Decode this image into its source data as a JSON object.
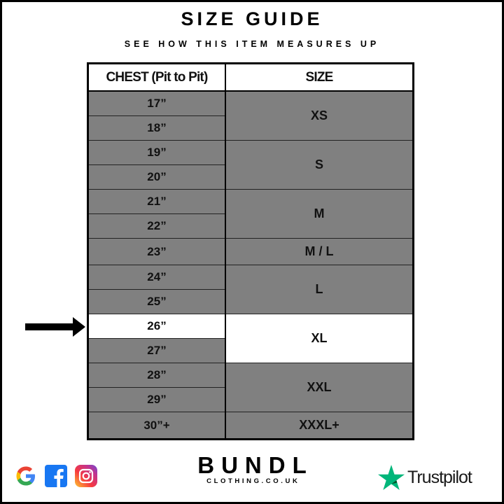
{
  "header": {
    "title": "SIZE GUIDE",
    "subtitle": "SEE HOW THIS ITEM MEASURES UP"
  },
  "table": {
    "columns": [
      "CHEST (Pit to Pit)",
      "SIZE"
    ],
    "groups": [
      {
        "size": "XS",
        "chest": [
          "17”",
          "18”"
        ]
      },
      {
        "size": "S",
        "chest": [
          "19”",
          "20”"
        ]
      },
      {
        "size": "M",
        "chest": [
          "21”",
          "22”"
        ]
      },
      {
        "size": "M / L",
        "chest": [
          "23”"
        ]
      },
      {
        "size": "L",
        "chest": [
          "24”",
          "25”"
        ]
      },
      {
        "size": "XL",
        "chest": [
          "26”",
          "27”"
        ]
      },
      {
        "size": "XXL",
        "chest": [
          "28”",
          "29”"
        ]
      },
      {
        "size": "XXXL+",
        "chest": [
          "30”+"
        ]
      }
    ],
    "highlighted_chest": "26”",
    "highlighted_size": "XL",
    "colors": {
      "row_bg": "#808080",
      "highlight_bg": "#ffffff"
    }
  },
  "footer": {
    "social_icons": [
      "google-icon",
      "facebook-icon",
      "instagram-icon"
    ],
    "brand": {
      "name": "BUNDL",
      "domain": "CLOTHING.CO.UK"
    },
    "trustpilot": {
      "label": "Trustpilot",
      "color": "#00b67a"
    }
  }
}
